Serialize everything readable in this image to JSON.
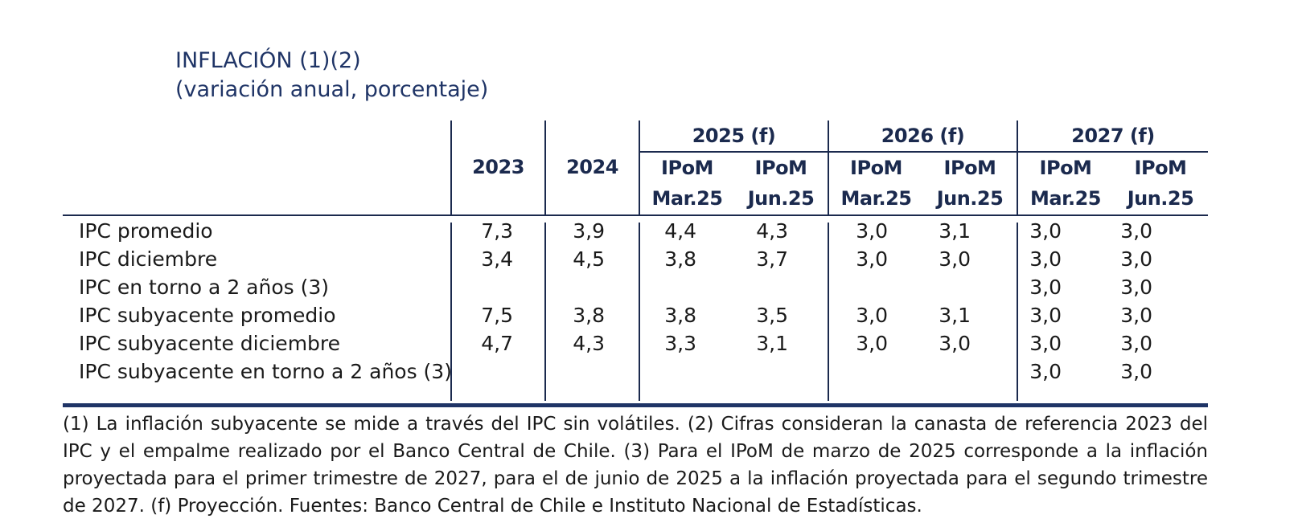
{
  "title": {
    "line1": "INFLACIÓN (1)(2)",
    "line2": "(variación anual, porcentaje)"
  },
  "header": {
    "year_2023": "2023",
    "year_2024": "2024",
    "groups": [
      {
        "label": "2025 (f)",
        "sub": [
          {
            "l1": "IPoM",
            "l2": "Mar.25"
          },
          {
            "l1": "IPoM",
            "l2": "Jun.25"
          }
        ]
      },
      {
        "label": "2026 (f)",
        "sub": [
          {
            "l1": "IPoM",
            "l2": "Mar.25"
          },
          {
            "l1": "IPoM",
            "l2": "Jun.25"
          }
        ]
      },
      {
        "label": "2027 (f)",
        "sub": [
          {
            "l1": "IPoM",
            "l2": "Mar.25"
          },
          {
            "l1": "IPoM",
            "l2": "Jun.25"
          }
        ]
      }
    ]
  },
  "rows": [
    {
      "label": "IPC promedio",
      "values": [
        "7,3",
        "3,9",
        "4,4",
        "4,3",
        "3,0",
        "3,1",
        "3,0",
        "3,0"
      ]
    },
    {
      "label": "IPC diciembre",
      "values": [
        "3,4",
        "4,5",
        "3,8",
        "3,7",
        "3,0",
        "3,0",
        "3,0",
        "3,0"
      ]
    },
    {
      "label": "IPC en torno a 2 años (3)",
      "values": [
        "",
        "",
        "",
        "",
        "",
        "",
        "3,0",
        "3,0"
      ]
    },
    {
      "label": "IPC subyacente promedio",
      "values": [
        "7,5",
        "3,8",
        "3,8",
        "3,5",
        "3,0",
        "3,1",
        "3,0",
        "3,0"
      ]
    },
    {
      "label": "IPC subyacente diciembre",
      "values": [
        "4,7",
        "4,3",
        "3,3",
        "3,1",
        "3,0",
        "3,0",
        "3,0",
        "3,0"
      ]
    },
    {
      "label": "IPC subyacente en torno a 2 años (3)",
      "values": [
        "",
        "",
        "",
        "",
        "",
        "",
        "3,0",
        "3,0"
      ]
    }
  ],
  "footnote": "(1) La inflación subyacente se mide a través del IPC sin volátiles. (2) Cifras consideran la canasta de referencia 2023 del IPC y el empalme realizado por el Banco Central de Chile. (3) Para el IPoM de marzo de 2025 corresponde a la inflación proyectada para el primer trimestre de 2027, para el de junio de 2025 a la inflación proyectada para el segundo trimestre de 2027. (f) Proyección. Fuentes: Banco Central de Chile e Instituto Nacional de Estadísticas."
}
